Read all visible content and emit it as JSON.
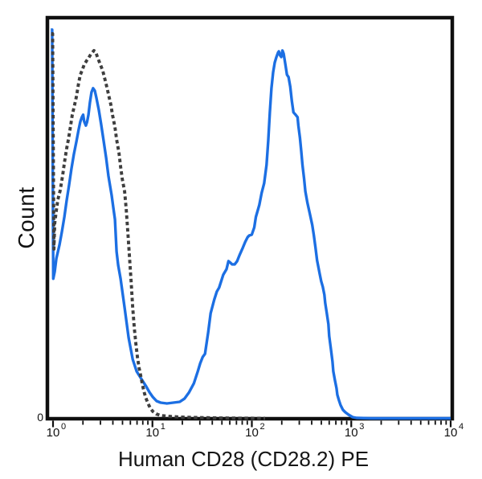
{
  "chart_data": {
    "type": "line",
    "title": "",
    "xlabel": "Human CD28 (CD28.2) PE",
    "ylabel": "Count",
    "y_zero_label": "0",
    "xscale": "log",
    "xlim": [
      1,
      10000
    ],
    "ylim": [
      0,
      100
    ],
    "grid": false,
    "legend": "none",
    "x_tick_base": "10",
    "x_tick_exponents": [
      0,
      1,
      2,
      3,
      4
    ],
    "x_minor_tick_multipliers": [
      2,
      3,
      4,
      5,
      6,
      7,
      8,
      9
    ],
    "series": [
      {
        "name": "blue-solid-stained-sample",
        "color": "#1c6fe3",
        "line_style": "solid",
        "line_width": 3.4,
        "points": [
          [
            0.95,
            97
          ],
          [
            0.98,
            97
          ],
          [
            1.005,
            34.9
          ],
          [
            1.04,
            36.7
          ],
          [
            1.08,
            39.9
          ],
          [
            1.16,
            43.3
          ],
          [
            1.23,
            46.7
          ],
          [
            1.3,
            50.3
          ],
          [
            1.37,
            54.3
          ],
          [
            1.45,
            58.3
          ],
          [
            1.53,
            62.3
          ],
          [
            1.62,
            65.9
          ],
          [
            1.72,
            69.1
          ],
          [
            1.81,
            72.1
          ],
          [
            1.88,
            74
          ],
          [
            1.95,
            75.2
          ],
          [
            2.01,
            75.8
          ],
          [
            2.06,
            74.1
          ],
          [
            2.14,
            73.1
          ],
          [
            2.2,
            74
          ],
          [
            2.27,
            75.8
          ],
          [
            2.35,
            78.8
          ],
          [
            2.44,
            81.4
          ],
          [
            2.53,
            82.4
          ],
          [
            2.63,
            81.8
          ],
          [
            2.73,
            80
          ],
          [
            2.89,
            77
          ],
          [
            3.05,
            73.4
          ],
          [
            3.23,
            69.3
          ],
          [
            3.42,
            65.1
          ],
          [
            3.61,
            60.5
          ],
          [
            3.75,
            58.1
          ],
          [
            3.89,
            55.7
          ],
          [
            4.04,
            52.7
          ],
          [
            4.2,
            49.7
          ],
          [
            4.36,
            41.7
          ],
          [
            4.52,
            38.3
          ],
          [
            4.78,
            34.9
          ],
          [
            5.25,
            27.7
          ],
          [
            5.76,
            20.2
          ],
          [
            6.33,
            14.8
          ],
          [
            6.94,
            11.8
          ],
          [
            7.62,
            10.2
          ],
          [
            8.68,
            8
          ],
          [
            9.35,
            6.6
          ],
          [
            10.1,
            5.4
          ],
          [
            11,
            4.4
          ],
          [
            12.1,
            4
          ],
          [
            14,
            3.8
          ],
          [
            16.2,
            4
          ],
          [
            18.8,
            4.2
          ],
          [
            21,
            5
          ],
          [
            23.4,
            6.6
          ],
          [
            26.1,
            8.8
          ],
          [
            28.6,
            11.8
          ],
          [
            30.2,
            13.8
          ],
          [
            32,
            15.4
          ],
          [
            33.8,
            16.2
          ],
          [
            36.4,
            21.6
          ],
          [
            38.5,
            26.3
          ],
          [
            41.9,
            29.7
          ],
          [
            44.4,
            31.7
          ],
          [
            46.9,
            32.7
          ],
          [
            51.6,
            35.9
          ],
          [
            55.6,
            37.3
          ],
          [
            58.2,
            39.3
          ],
          [
            61,
            38.9
          ],
          [
            63.3,
            38.5
          ],
          [
            67.1,
            38.5
          ],
          [
            71.2,
            39.3
          ],
          [
            75.5,
            40.9
          ],
          [
            81.3,
            42.7
          ],
          [
            85.9,
            44.1
          ],
          [
            90.8,
            45.3
          ],
          [
            94.3,
            45.7
          ],
          [
            99.8,
            45.9
          ],
          [
            105.7,
            47.7
          ],
          [
            109.8,
            50.3
          ],
          [
            118.8,
            53.3
          ],
          [
            125.6,
            56.3
          ],
          [
            132.9,
            58.7
          ],
          [
            140.6,
            63.3
          ],
          [
            146.1,
            69.3
          ],
          [
            151.7,
            76.4
          ],
          [
            157.6,
            82.4
          ],
          [
            163.7,
            86.4
          ],
          [
            170.1,
            88.8
          ],
          [
            176.6,
            90.2
          ],
          [
            183.5,
            91.3
          ],
          [
            187,
            91.6
          ],
          [
            192.3,
            90.6
          ],
          [
            197.7,
            90.2
          ],
          [
            203.3,
            91.8
          ],
          [
            209.1,
            91
          ],
          [
            217.1,
            88.4
          ],
          [
            225.5,
            85.8
          ],
          [
            234.2,
            85.2
          ],
          [
            243.2,
            82.8
          ],
          [
            252.6,
            79.2
          ],
          [
            262.3,
            76.4
          ],
          [
            277.7,
            75.7
          ],
          [
            288.3,
            75.2
          ],
          [
            293.8,
            73.1
          ],
          [
            305.1,
            70
          ],
          [
            313.9,
            66.7
          ],
          [
            322.9,
            63.3
          ],
          [
            335.4,
            59.9
          ],
          [
            345.1,
            56.7
          ],
          [
            362,
            53.9
          ],
          [
            383,
            51.1
          ],
          [
            405.2,
            48.3
          ],
          [
            420.7,
            45.7
          ],
          [
            436.8,
            42.7
          ],
          [
            453.4,
            39.5
          ],
          [
            479.6,
            36.3
          ],
          [
            497.9,
            34.3
          ],
          [
            516.9,
            32.9
          ],
          [
            536.7,
            30.9
          ],
          [
            546.8,
            28.9
          ],
          [
            567.7,
            26.3
          ],
          [
            589.4,
            23.6
          ],
          [
            600.6,
            20.6
          ],
          [
            623.5,
            17.4
          ],
          [
            647.3,
            14.2
          ],
          [
            659.6,
            11.8
          ],
          [
            684.7,
            9.6
          ],
          [
            710.9,
            7.6
          ],
          [
            724.3,
            6
          ],
          [
            752,
            4.6
          ],
          [
            780.7,
            3.4
          ],
          [
            825.4,
            2.2
          ],
          [
            872.7,
            1.6
          ],
          [
            939.9,
            1
          ],
          [
            1031,
            0.4
          ],
          [
            1131,
            0.2
          ],
          [
            1576,
            0.1
          ],
          [
            3300,
            0.1
          ],
          [
            7000,
            0.1
          ],
          [
            10000,
            0.1
          ]
        ]
      },
      {
        "name": "dark-dashed-isotype-control",
        "color": "#3e3e3e",
        "line_style": "dashed",
        "line_width": 3.9,
        "points": [
          [
            0.96,
            96
          ],
          [
            0.99,
            96
          ],
          [
            1.02,
            42.3
          ],
          [
            1.04,
            48.7
          ],
          [
            1.08,
            51.9
          ],
          [
            1.12,
            54.7
          ],
          [
            1.18,
            56.9
          ],
          [
            1.25,
            60.7
          ],
          [
            1.3,
            63.7
          ],
          [
            1.37,
            67.3
          ],
          [
            1.43,
            69.7
          ],
          [
            1.51,
            73.3
          ],
          [
            1.56,
            75.7
          ],
          [
            1.65,
            78.3
          ],
          [
            1.72,
            80.3
          ],
          [
            1.81,
            83.7
          ],
          [
            1.88,
            85.7
          ],
          [
            1.99,
            87.3
          ],
          [
            2.06,
            88.3
          ],
          [
            2.18,
            89.3
          ],
          [
            2.27,
            89.9
          ],
          [
            2.4,
            90.9
          ],
          [
            2.49,
            91.3
          ],
          [
            2.58,
            91.8
          ],
          [
            2.68,
            91.5
          ],
          [
            2.79,
            90.3
          ],
          [
            2.89,
            89.3
          ],
          [
            3,
            88.3
          ],
          [
            3.17,
            86.7
          ],
          [
            3.28,
            85.3
          ],
          [
            3.48,
            82.7
          ],
          [
            3.61,
            80.9
          ],
          [
            3.82,
            78.3
          ],
          [
            3.97,
            75.7
          ],
          [
            4.2,
            72.7
          ],
          [
            4.36,
            69.7
          ],
          [
            4.61,
            66.3
          ],
          [
            4.78,
            62.9
          ],
          [
            4.96,
            59.9
          ],
          [
            5.25,
            56.7
          ],
          [
            5.45,
            52.3
          ],
          [
            5.66,
            46.3
          ],
          [
            5.88,
            40.3
          ],
          [
            6.1,
            34.3
          ],
          [
            6.33,
            27.7
          ],
          [
            6.57,
            22.6
          ],
          [
            6.82,
            18.6
          ],
          [
            7.08,
            15.2
          ],
          [
            7.35,
            12.6
          ],
          [
            7.62,
            10.8
          ],
          [
            7.92,
            8.6
          ],
          [
            8.22,
            6.8
          ],
          [
            8.53,
            5.4
          ],
          [
            9.02,
            3.8
          ],
          [
            9.53,
            2.6
          ],
          [
            10.1,
            1.8
          ],
          [
            10.9,
            1.2
          ],
          [
            12.1,
            0.8
          ],
          [
            14.6,
            0.6
          ],
          [
            19.3,
            0.4
          ],
          [
            28,
            0.3
          ],
          [
            44.4,
            0.2
          ],
          [
            78,
            0.15
          ],
          [
            136,
            0.1
          ]
        ]
      }
    ]
  },
  "layout_colors": {
    "background": "#ffffff",
    "frame_color": "#0f0f0f",
    "tick_color": "#0f0f0f",
    "text_color": "#111111"
  }
}
